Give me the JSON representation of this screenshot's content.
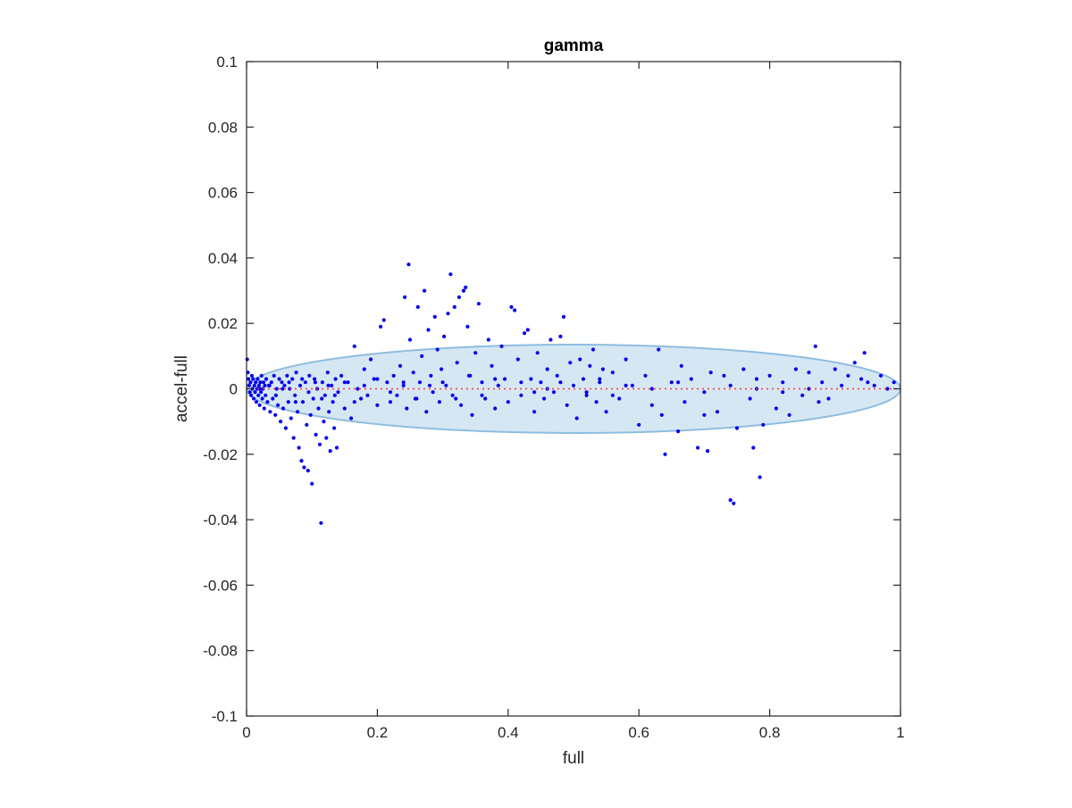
{
  "chart_data": {
    "type": "scatter",
    "title": "gamma",
    "xlabel": "full",
    "ylabel": "accel-full",
    "xlim": [
      0,
      1
    ],
    "ylim": [
      -0.1,
      0.1
    ],
    "xticks": [
      0,
      0.2,
      0.4,
      0.6,
      0.8,
      1
    ],
    "xtick_labels": [
      "0",
      "0.2",
      "0.4",
      "0.6",
      "0.8",
      "1"
    ],
    "yticks": [
      -0.1,
      -0.08,
      -0.06,
      -0.04,
      -0.02,
      0,
      0.02,
      0.04,
      0.06,
      0.08,
      0.1
    ],
    "ytick_labels": [
      "-0.1",
      "-0.08",
      "-0.06",
      "-0.04",
      "-0.02",
      "0",
      "0.02",
      "0.04",
      "0.06",
      "0.08",
      "0.1"
    ],
    "grid": false,
    "legend": "none",
    "ellipse": {
      "center": [
        0.5,
        0.0
      ],
      "x_radius": 0.5,
      "y_radius": 0.0135,
      "fill": "#cfe3f2",
      "stroke": "#8fbddf"
    },
    "reference_line": {
      "y": 0,
      "color": "#ff3333",
      "style": "dotted"
    },
    "series": [
      {
        "color": "#0000ee",
        "points": [
          [
            0.001,
            0.009
          ],
          [
            0.002,
            0.005
          ],
          [
            0.003,
            0.003
          ],
          [
            0.004,
            0.001
          ],
          [
            0.005,
            -0.001
          ],
          [
            0.006,
            0.002
          ],
          [
            0.007,
            -0.002
          ],
          [
            0.008,
            0.004
          ],
          [
            0.009,
            0.0
          ],
          [
            0.01,
            0.003
          ],
          [
            0.011,
            -0.003
          ],
          [
            0.012,
            0.001
          ],
          [
            0.013,
            -0.001
          ],
          [
            0.014,
            0.002
          ],
          [
            0.015,
            -0.004
          ],
          [
            0.016,
            0.0
          ],
          [
            0.017,
            0.003
          ],
          [
            0.018,
            -0.002
          ],
          [
            0.019,
            0.001
          ],
          [
            0.02,
            -0.005
          ],
          [
            0.021,
            0.002
          ],
          [
            0.022,
            -0.001
          ],
          [
            0.023,
            0.004
          ],
          [
            0.024,
            -0.003
          ],
          [
            0.025,
            0.0
          ],
          [
            0.026,
            0.002
          ],
          [
            0.027,
            -0.006
          ],
          [
            0.028,
            0.001
          ],
          [
            0.029,
            -0.002
          ],
          [
            0.03,
            0.003
          ],
          [
            0.032,
            -0.004
          ],
          [
            0.034,
            0.001
          ],
          [
            0.036,
            -0.007
          ],
          [
            0.038,
            0.002
          ],
          [
            0.04,
            -0.003
          ],
          [
            0.042,
            0.004
          ],
          [
            0.044,
            -0.008
          ],
          [
            0.046,
            0.0
          ],
          [
            0.048,
            -0.005
          ],
          [
            0.05,
            0.003
          ],
          [
            0.052,
            -0.01
          ],
          [
            0.054,
            0.002
          ],
          [
            0.056,
            -0.006
          ],
          [
            0.058,
            0.001
          ],
          [
            0.06,
            -0.012
          ],
          [
            0.062,
            0.004
          ],
          [
            0.064,
            -0.004
          ],
          [
            0.066,
            0.0
          ],
          [
            0.068,
            -0.009
          ],
          [
            0.07,
            0.003
          ],
          [
            0.072,
            -0.015
          ],
          [
            0.074,
            -0.002
          ],
          [
            0.076,
            0.005
          ],
          [
            0.078,
            -0.007
          ],
          [
            0.08,
            -0.018
          ],
          [
            0.082,
            0.001
          ],
          [
            0.084,
            -0.022
          ],
          [
            0.086,
            -0.004
          ],
          [
            0.088,
            -0.024
          ],
          [
            0.09,
            0.002
          ],
          [
            0.092,
            -0.011
          ],
          [
            0.094,
            -0.025
          ],
          [
            0.096,
            0.004
          ],
          [
            0.098,
            -0.008
          ],
          [
            0.1,
            -0.029
          ],
          [
            0.102,
            -0.003
          ],
          [
            0.104,
            0.003
          ],
          [
            0.106,
            -0.014
          ],
          [
            0.108,
            0.0
          ],
          [
            0.11,
            -0.006
          ],
          [
            0.112,
            -0.017
          ],
          [
            0.114,
            -0.041
          ],
          [
            0.116,
            0.002
          ],
          [
            0.118,
            -0.01
          ],
          [
            0.12,
            -0.002
          ],
          [
            0.122,
            -0.015
          ],
          [
            0.124,
            0.005
          ],
          [
            0.126,
            -0.007
          ],
          [
            0.128,
            -0.019
          ],
          [
            0.13,
            0.001
          ],
          [
            0.132,
            -0.004
          ],
          [
            0.134,
            -0.012
          ],
          [
            0.136,
            0.003
          ],
          [
            0.138,
            -0.018
          ],
          [
            0.14,
            -0.001
          ],
          [
            0.145,
            0.004
          ],
          [
            0.15,
            -0.006
          ],
          [
            0.155,
            0.002
          ],
          [
            0.16,
            -0.009
          ],
          [
            0.165,
            0.013
          ],
          [
            0.17,
            0.0
          ],
          [
            0.175,
            -0.003
          ],
          [
            0.18,
            0.006
          ],
          [
            0.185,
            -0.002
          ],
          [
            0.19,
            0.009
          ],
          [
            0.195,
            0.003
          ],
          [
            0.2,
            -0.005
          ],
          [
            0.205,
            0.019
          ],
          [
            0.21,
            0.021
          ],
          [
            0.215,
            0.002
          ],
          [
            0.22,
            -0.004
          ],
          [
            0.225,
            0.004
          ],
          [
            0.23,
            -0.002
          ],
          [
            0.235,
            0.007
          ],
          [
            0.24,
            0.001
          ],
          [
            0.242,
            0.028
          ],
          [
            0.245,
            -0.006
          ],
          [
            0.248,
            0.038
          ],
          [
            0.25,
            0.015
          ],
          [
            0.255,
            0.005
          ],
          [
            0.258,
            -0.003
          ],
          [
            0.262,
            0.025
          ],
          [
            0.265,
            0.002
          ],
          [
            0.268,
            0.01
          ],
          [
            0.272,
            0.03
          ],
          [
            0.275,
            -0.007
          ],
          [
            0.278,
            0.018
          ],
          [
            0.282,
            0.004
          ],
          [
            0.285,
            -0.001
          ],
          [
            0.288,
            0.022
          ],
          [
            0.292,
            0.012
          ],
          [
            0.295,
            -0.004
          ],
          [
            0.298,
            0.006
          ],
          [
            0.302,
            0.016
          ],
          [
            0.305,
            0.001
          ],
          [
            0.308,
            0.023
          ],
          [
            0.312,
            0.035
          ],
          [
            0.315,
            -0.002
          ],
          [
            0.318,
            0.025
          ],
          [
            0.322,
            0.008
          ],
          [
            0.325,
            0.028
          ],
          [
            0.328,
            -0.005
          ],
          [
            0.332,
            0.03
          ],
          [
            0.335,
            0.031
          ],
          [
            0.338,
            0.019
          ],
          [
            0.342,
            0.004
          ],
          [
            0.345,
            -0.008
          ],
          [
            0.35,
            0.011
          ],
          [
            0.355,
            0.026
          ],
          [
            0.36,
            0.002
          ],
          [
            0.365,
            -0.003
          ],
          [
            0.37,
            0.015
          ],
          [
            0.375,
            0.007
          ],
          [
            0.38,
            -0.006
          ],
          [
            0.385,
            0.001
          ],
          [
            0.39,
            0.013
          ],
          [
            0.395,
            0.003
          ],
          [
            0.4,
            -0.004
          ],
          [
            0.405,
            0.025
          ],
          [
            0.41,
            0.024
          ],
          [
            0.415,
            0.009
          ],
          [
            0.42,
            -0.002
          ],
          [
            0.425,
            0.017
          ],
          [
            0.43,
            0.018
          ],
          [
            0.435,
            0.003
          ],
          [
            0.44,
            -0.007
          ],
          [
            0.445,
            0.011
          ],
          [
            0.45,
            0.002
          ],
          [
            0.455,
            -0.003
          ],
          [
            0.46,
            0.006
          ],
          [
            0.465,
            0.015
          ],
          [
            0.47,
            -0.001
          ],
          [
            0.475,
            0.004
          ],
          [
            0.48,
            0.016
          ],
          [
            0.485,
            0.022
          ],
          [
            0.49,
            -0.005
          ],
          [
            0.495,
            0.008
          ],
          [
            0.5,
            0.001
          ],
          [
            0.505,
            -0.009
          ],
          [
            0.51,
            0.009
          ],
          [
            0.515,
            0.003
          ],
          [
            0.52,
            -0.002
          ],
          [
            0.525,
            0.007
          ],
          [
            0.53,
            0.012
          ],
          [
            0.535,
            -0.004
          ],
          [
            0.54,
            0.002
          ],
          [
            0.545,
            0.006
          ],
          [
            0.55,
            -0.007
          ],
          [
            0.56,
            0.005
          ],
          [
            0.57,
            -0.003
          ],
          [
            0.58,
            0.009
          ],
          [
            0.59,
            0.001
          ],
          [
            0.6,
            -0.011
          ],
          [
            0.61,
            0.004
          ],
          [
            0.62,
            -0.005
          ],
          [
            0.63,
            0.012
          ],
          [
            0.635,
            -0.008
          ],
          [
            0.64,
            -0.02
          ],
          [
            0.65,
            0.002
          ],
          [
            0.66,
            -0.013
          ],
          [
            0.665,
            0.007
          ],
          [
            0.67,
            -0.004
          ],
          [
            0.68,
            0.003
          ],
          [
            0.69,
            -0.018
          ],
          [
            0.7,
            -0.008
          ],
          [
            0.705,
            -0.019
          ],
          [
            0.71,
            0.005
          ],
          [
            0.72,
            -0.007
          ],
          [
            0.73,
            0.004
          ],
          [
            0.74,
            -0.034
          ],
          [
            0.745,
            -0.035
          ],
          [
            0.75,
            -0.012
          ],
          [
            0.76,
            0.006
          ],
          [
            0.77,
            -0.003
          ],
          [
            0.775,
            -0.018
          ],
          [
            0.78,
            0.003
          ],
          [
            0.785,
            -0.027
          ],
          [
            0.79,
            -0.011
          ],
          [
            0.8,
            0.004
          ],
          [
            0.81,
            -0.006
          ],
          [
            0.82,
            0.002
          ],
          [
            0.83,
            -0.008
          ],
          [
            0.84,
            0.006
          ],
          [
            0.85,
            -0.002
          ],
          [
            0.86,
            0.005
          ],
          [
            0.87,
            0.013
          ],
          [
            0.875,
            -0.004
          ],
          [
            0.88,
            0.002
          ],
          [
            0.89,
            -0.003
          ],
          [
            0.9,
            0.006
          ],
          [
            0.91,
            0.001
          ],
          [
            0.92,
            0.004
          ],
          [
            0.93,
            0.008
          ],
          [
            0.94,
            0.003
          ],
          [
            0.945,
            0.011
          ],
          [
            0.95,
            0.002
          ],
          [
            0.96,
            0.001
          ],
          [
            0.97,
            0.004
          ],
          [
            0.98,
            0.0
          ],
          [
            0.99,
            0.002
          ],
          [
            0.02,
            0.0
          ],
          [
            0.035,
            0.001
          ],
          [
            0.045,
            -0.002
          ],
          [
            0.055,
            0.0
          ],
          [
            0.065,
            0.002
          ],
          [
            0.075,
            -0.004
          ],
          [
            0.085,
            0.003
          ],
          [
            0.095,
            -0.001
          ],
          [
            0.105,
            0.002
          ],
          [
            0.115,
            -0.003
          ],
          [
            0.125,
            0.001
          ],
          [
            0.135,
            -0.002
          ],
          [
            0.15,
            0.002
          ],
          [
            0.165,
            -0.004
          ],
          [
            0.18,
            0.001
          ],
          [
            0.2,
            0.003
          ],
          [
            0.22,
            -0.001
          ],
          [
            0.24,
            0.002
          ],
          [
            0.26,
            -0.003
          ],
          [
            0.28,
            0.001
          ],
          [
            0.3,
            0.002
          ],
          [
            0.32,
            -0.003
          ],
          [
            0.34,
            0.004
          ],
          [
            0.36,
            -0.002
          ],
          [
            0.38,
            0.003
          ],
          [
            0.42,
            0.002
          ],
          [
            0.44,
            -0.001
          ],
          [
            0.46,
            0.0
          ],
          [
            0.48,
            0.002
          ],
          [
            0.52,
            -0.001
          ],
          [
            0.54,
            0.003
          ],
          [
            0.56,
            -0.002
          ],
          [
            0.58,
            0.001
          ],
          [
            0.62,
            0.0
          ],
          [
            0.66,
            0.002
          ],
          [
            0.7,
            -0.001
          ],
          [
            0.74,
            0.001
          ],
          [
            0.78,
            0.0
          ],
          [
            0.82,
            -0.001
          ],
          [
            0.86,
            0.0
          ]
        ]
      }
    ]
  }
}
